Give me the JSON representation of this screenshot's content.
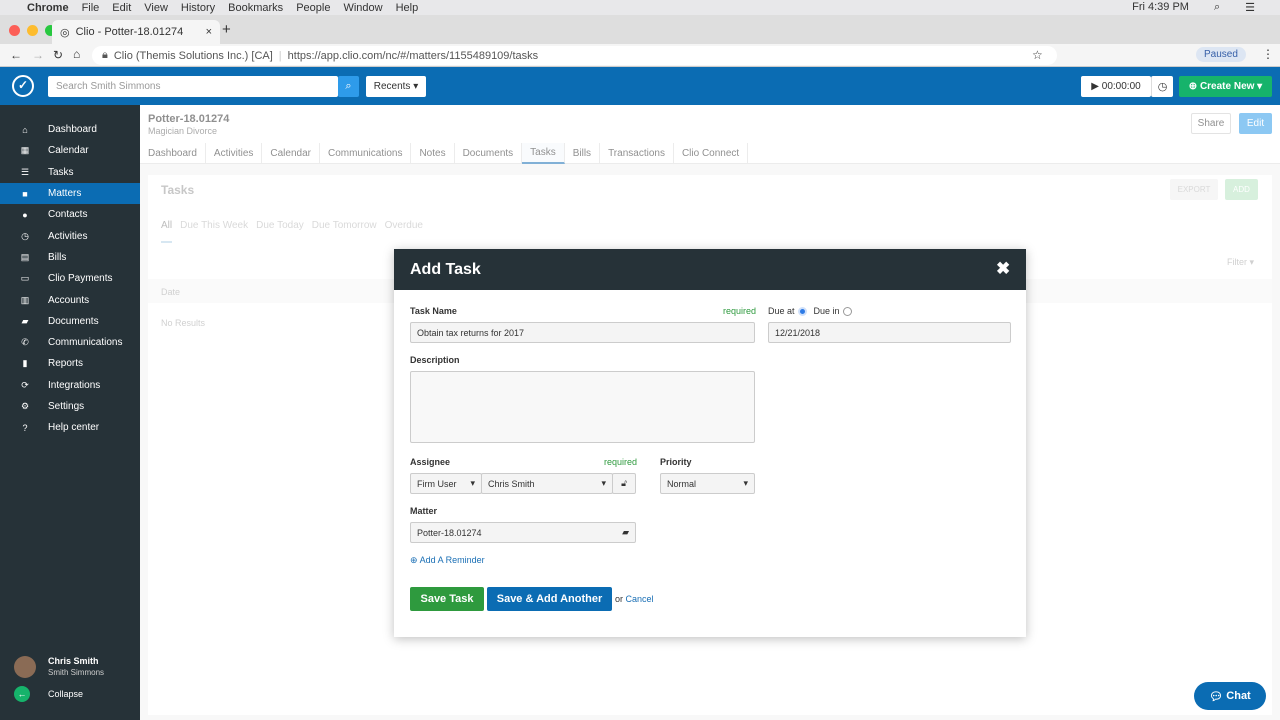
{
  "menubar": {
    "app": "Chrome",
    "items": [
      "File",
      "Edit",
      "View",
      "History",
      "Bookmarks",
      "People",
      "Window",
      "Help"
    ],
    "clock": "Fri 4:39 PM"
  },
  "browser": {
    "tab_title": "Clio - Potter-18.01274",
    "site_label": "Clio (Themis Solutions Inc.) [CA]",
    "url": "https://app.clio.com/nc/#/matters/1155489109/tasks",
    "profile": "Paused"
  },
  "header": {
    "search_placeholder": "Search Smith Simmons",
    "recents": "Recents",
    "timer": "00:00:00",
    "create_new": "Create New"
  },
  "sidebar": {
    "items": [
      {
        "label": "Dashboard",
        "icon": "⌂"
      },
      {
        "label": "Calendar",
        "icon": "▦"
      },
      {
        "label": "Tasks",
        "icon": "☰"
      },
      {
        "label": "Matters",
        "icon": "■"
      },
      {
        "label": "Contacts",
        "icon": "●"
      },
      {
        "label": "Activities",
        "icon": "◷"
      },
      {
        "label": "Bills",
        "icon": "▤"
      },
      {
        "label": "Clio Payments",
        "icon": "▭"
      },
      {
        "label": "Accounts",
        "icon": "▥"
      },
      {
        "label": "Documents",
        "icon": "▰"
      },
      {
        "label": "Communications",
        "icon": "✆"
      },
      {
        "label": "Reports",
        "icon": "▮"
      },
      {
        "label": "Integrations",
        "icon": "⟳"
      },
      {
        "label": "Settings",
        "icon": "⚙"
      },
      {
        "label": "Help center",
        "icon": "?"
      }
    ],
    "active": "Matters",
    "user_name": "Chris Smith",
    "firm": "Smith Simmons",
    "collapse": "Collapse"
  },
  "matter": {
    "title": "Potter-18.01274",
    "subtitle": "Magician Divorce",
    "share": "Share",
    "edit": "Edit",
    "tabs": [
      "Dashboard",
      "Activities",
      "Calendar",
      "Communications",
      "Notes",
      "Documents",
      "Tasks",
      "Bills",
      "Transactions",
      "Clio Connect"
    ],
    "active_tab": "Tasks"
  },
  "tasks": {
    "title": "Tasks",
    "export": "EXPORT",
    "add": "ADD",
    "filters": [
      "All",
      "Due This Week",
      "Due Today",
      "Due Tomorrow",
      "Overdue"
    ],
    "filter": "Filter",
    "date_col": "Date",
    "empty": "No Results"
  },
  "modal": {
    "title": "Add Task",
    "task_name_label": "Task Name",
    "required": "required",
    "task_name_value": "Obtain tax returns for 2017",
    "due_at": "Due at",
    "due_in": "Due in",
    "due_date": "12/21/2018",
    "description_label": "Description",
    "description_value": "",
    "assignee_label": "Assignee",
    "assignee_type": "Firm User",
    "assignee": "Chris Smith",
    "priority_label": "Priority",
    "priority": "Normal",
    "matter_label": "Matter",
    "matter_value": "Potter-18.01274",
    "add_reminder": "Add A Reminder",
    "save": "Save Task",
    "save_another": "Save & Add Another",
    "or": "or",
    "cancel": "Cancel"
  },
  "chat": "Chat",
  "colors": {
    "brand": "#0b6cb3",
    "sidebar": "#263238",
    "success": "#2e9a3e",
    "create": "#16b36b"
  }
}
